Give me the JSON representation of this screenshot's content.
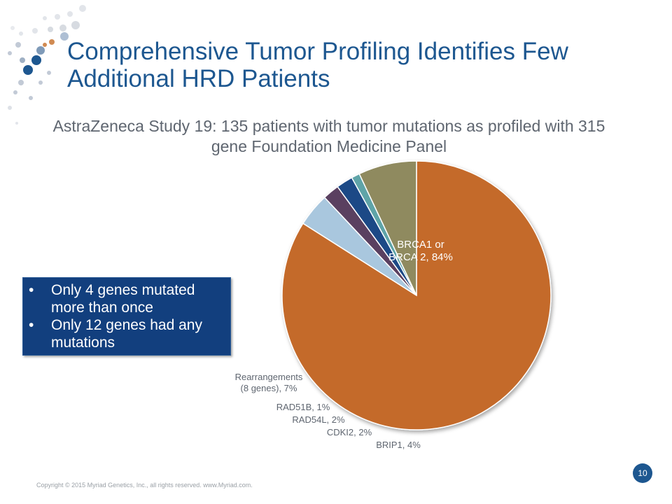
{
  "slide": {
    "title": "Comprehensive Tumor Profiling Identifies Few Additional HRD Patients",
    "subtitle": "AstraZeneca Study 19: 135 patients with tumor mutations as profiled with 315 gene Foundation Medicine Panel",
    "callout": [
      "Only 4 genes mutated more than once",
      "Only 12 genes had any mutations"
    ],
    "callout_bullet": "•",
    "footer": "Copyright © 2015 Myriad Genetics, Inc., all rights reserved.  www.Myriad.com.",
    "page_number": "10",
    "colors": {
      "title": "#1d5790",
      "callout_bg": "#123f7e",
      "page_badge": "#1d5790"
    }
  },
  "chart_data": {
    "type": "pie",
    "title": "",
    "labels": [
      "BRCA1 or BRCA 2, 84%",
      "BRIP1, 4%",
      "CDKI2, 2%",
      "RAD54L, 2%",
      "RAD51B, 1%",
      "Rearrangements (8 genes), 7%"
    ],
    "categories": [
      "BRCA1 or BRCA 2",
      "BRIP1",
      "CDKI2",
      "RAD54L",
      "RAD51B",
      "Rearrangements (8 genes)"
    ],
    "values": [
      84,
      4,
      2,
      2,
      1,
      7
    ],
    "colors": [
      "#c46a2c",
      "#a9c7de",
      "#5a3f60",
      "#1b4a86",
      "#5fa4a8",
      "#8f8a5e"
    ]
  }
}
